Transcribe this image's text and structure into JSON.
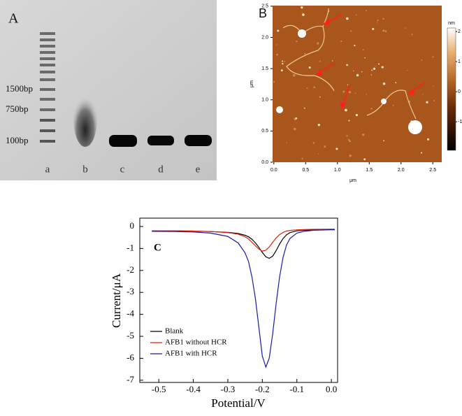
{
  "panel_a": {
    "label": "A",
    "size_labels": [
      "1500bp",
      "750bp",
      "100bp"
    ],
    "lanes": [
      "a",
      "b",
      "c",
      "d",
      "e"
    ]
  },
  "panel_b": {
    "label": "B",
    "xlabel": "μm",
    "ylabel": "μm",
    "xlim": [
      -0.02,
      2.64
    ],
    "ylim": [
      0,
      2.51
    ],
    "xticks": [
      {
        "value": 0,
        "label": "0.0"
      },
      0.5,
      {
        "value": 1,
        "label": "1.0"
      },
      1.5,
      {
        "value": 2,
        "label": "2.0"
      },
      2.5
    ],
    "yticks": [
      {
        "value": 0,
        "label": "0.0"
      },
      0.5,
      {
        "value": 1,
        "label": "1.0"
      },
      1.5,
      {
        "value": 2,
        "label": "2.0"
      },
      2.5
    ],
    "colorbar_label": "nm",
    "colorbar_lim": [
      -1.95,
      2.12
    ],
    "colorbar_ticks": [
      2,
      1,
      0,
      -1
    ]
  },
  "chart_data": {
    "type": "line",
    "label": "C",
    "xlabel": "Potential/V",
    "ylabel": "Current/μA",
    "xlim": [
      -0.555,
      0.018
    ],
    "ylim": [
      -7.1,
      0.38
    ],
    "xticks": [
      -0.5,
      -0.4,
      -0.3,
      -0.2,
      -0.1,
      {
        "value": 0,
        "label": "0.0"
      }
    ],
    "yticks": [
      0,
      -1,
      -2,
      -3,
      -4,
      -5,
      -6,
      -7
    ],
    "legend": "lower left",
    "x": [
      -0.52,
      -0.45,
      -0.4,
      -0.35,
      -0.3,
      -0.27,
      -0.25,
      -0.24,
      -0.23,
      -0.22,
      -0.21,
      -0.2,
      -0.19,
      -0.18,
      -0.17,
      -0.16,
      -0.15,
      -0.14,
      -0.13,
      -0.12,
      -0.1,
      -0.08,
      -0.05,
      0.0,
      0.01
    ],
    "series": [
      {
        "name": "Blank",
        "color": "#000000",
        "values": [
          -0.2,
          -0.2,
          -0.21,
          -0.23,
          -0.27,
          -0.32,
          -0.4,
          -0.47,
          -0.58,
          -0.75,
          -0.95,
          -1.18,
          -1.38,
          -1.45,
          -1.35,
          -1.1,
          -0.8,
          -0.55,
          -0.38,
          -0.28,
          -0.2,
          -0.17,
          -0.15,
          -0.14,
          -0.14
        ]
      },
      {
        "name": "AFB1 without HCR",
        "color": "#e02010",
        "values": [
          -0.2,
          -0.2,
          -0.21,
          -0.23,
          -0.28,
          -0.35,
          -0.47,
          -0.57,
          -0.72,
          -0.88,
          -1.03,
          -1.12,
          -1.08,
          -0.93,
          -0.72,
          -0.52,
          -0.37,
          -0.27,
          -0.21,
          -0.18,
          -0.15,
          -0.14,
          -0.13,
          -0.12,
          -0.12
        ]
      },
      {
        "name": "AFB1 with HCR",
        "color": "#1a1aa8",
        "values": [
          -0.22,
          -0.23,
          -0.25,
          -0.3,
          -0.45,
          -0.75,
          -1.2,
          -1.6,
          -2.3,
          -3.3,
          -4.6,
          -5.9,
          -6.4,
          -6.0,
          -4.9,
          -3.5,
          -2.3,
          -1.4,
          -0.85,
          -0.55,
          -0.3,
          -0.22,
          -0.17,
          -0.15,
          -0.15
        ]
      }
    ]
  }
}
